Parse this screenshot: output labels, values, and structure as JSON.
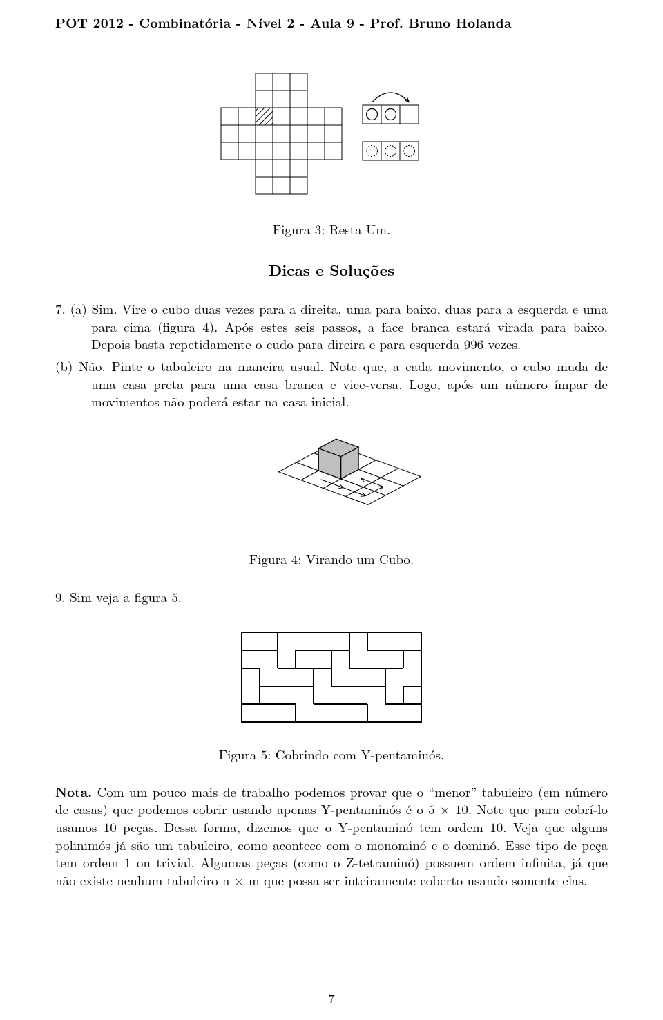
{
  "header": {
    "title": "POT 2012 - Combinatória - Nível 2 - Aula 9 - Prof. Bruno Holanda"
  },
  "figure3": {
    "caption": "Figura 3: Resta Um.",
    "board": {
      "cell_size": 25,
      "stroke_color": "#000000",
      "stroke_width": 1,
      "hatched_cell": {
        "row": 2,
        "col": 2
      },
      "arm_rows": 7,
      "arm_cols": 7,
      "core_start": 2,
      "core_end": 5
    },
    "side": {
      "cell": 27,
      "stroke_color": "#000000",
      "stroke_width": 1,
      "circle_radius": 8,
      "dash": "2,2"
    }
  },
  "sectionTitle": "Dicas e Soluções",
  "item7": {
    "label": "7.",
    "a_label": "(a)",
    "a_text": "Sim. Vire o cubo duas vezes para a direita, uma para baixo, duas para a esquerda e uma para cima (figura 4). Após estes seis passos, a face branca estará virada para baixo. Depois basta repetidamente o cudo para direira e para esquerda 996 vezes.",
    "b_label": "(b)",
    "b_text": "Não. Pinte o tabuleiro na maneira usual. Note que, a cada movimento, o cubo muda de uma casa preta para uma casa branca e vice-versa. Logo, após um número ímpar de movimentos não poderá estar na casa inicial."
  },
  "figure4": {
    "caption": "Figura 4: Virando um Cubo.",
    "stroke_color": "#000000",
    "cell": 34,
    "rows": 3,
    "cols": 4,
    "cube_col": 1,
    "cube_row": 1,
    "cube_fill": "#bfbfbf"
  },
  "item9": {
    "text": "9. Sim veja a figura 5."
  },
  "figure5": {
    "caption": "Figura 5: Cobrindo com Y-pentaminós.",
    "stroke_color": "#000000",
    "cell": 26,
    "cols": 10,
    "rows": 5
  },
  "nota": {
    "label": "Nota.",
    "text": " Com um pouco mais de trabalho podemos provar que o “menor” tabuleiro (em número de casas) que podemos cobrir usando apenas Y-pentaminós é o 5 × 10. Note que para cobrí-lo usamos 10 peças. Dessa forma, dizemos que o Y-pentaminó tem ordem 10. Veja que alguns polinimós já são um tabuleiro, como acontece com o monominó e o dominó. Esse tipo de peça tem ordem 1 ou trivial. Algumas peças (como o Z-tetraminó) possuem ordem infinita, já que não existe nenhum tabuleiro n × m que possa ser inteiramente coberto usando somente elas."
  },
  "pageNumber": "7",
  "colors": {
    "text": "#000000",
    "background": "#ffffff"
  }
}
